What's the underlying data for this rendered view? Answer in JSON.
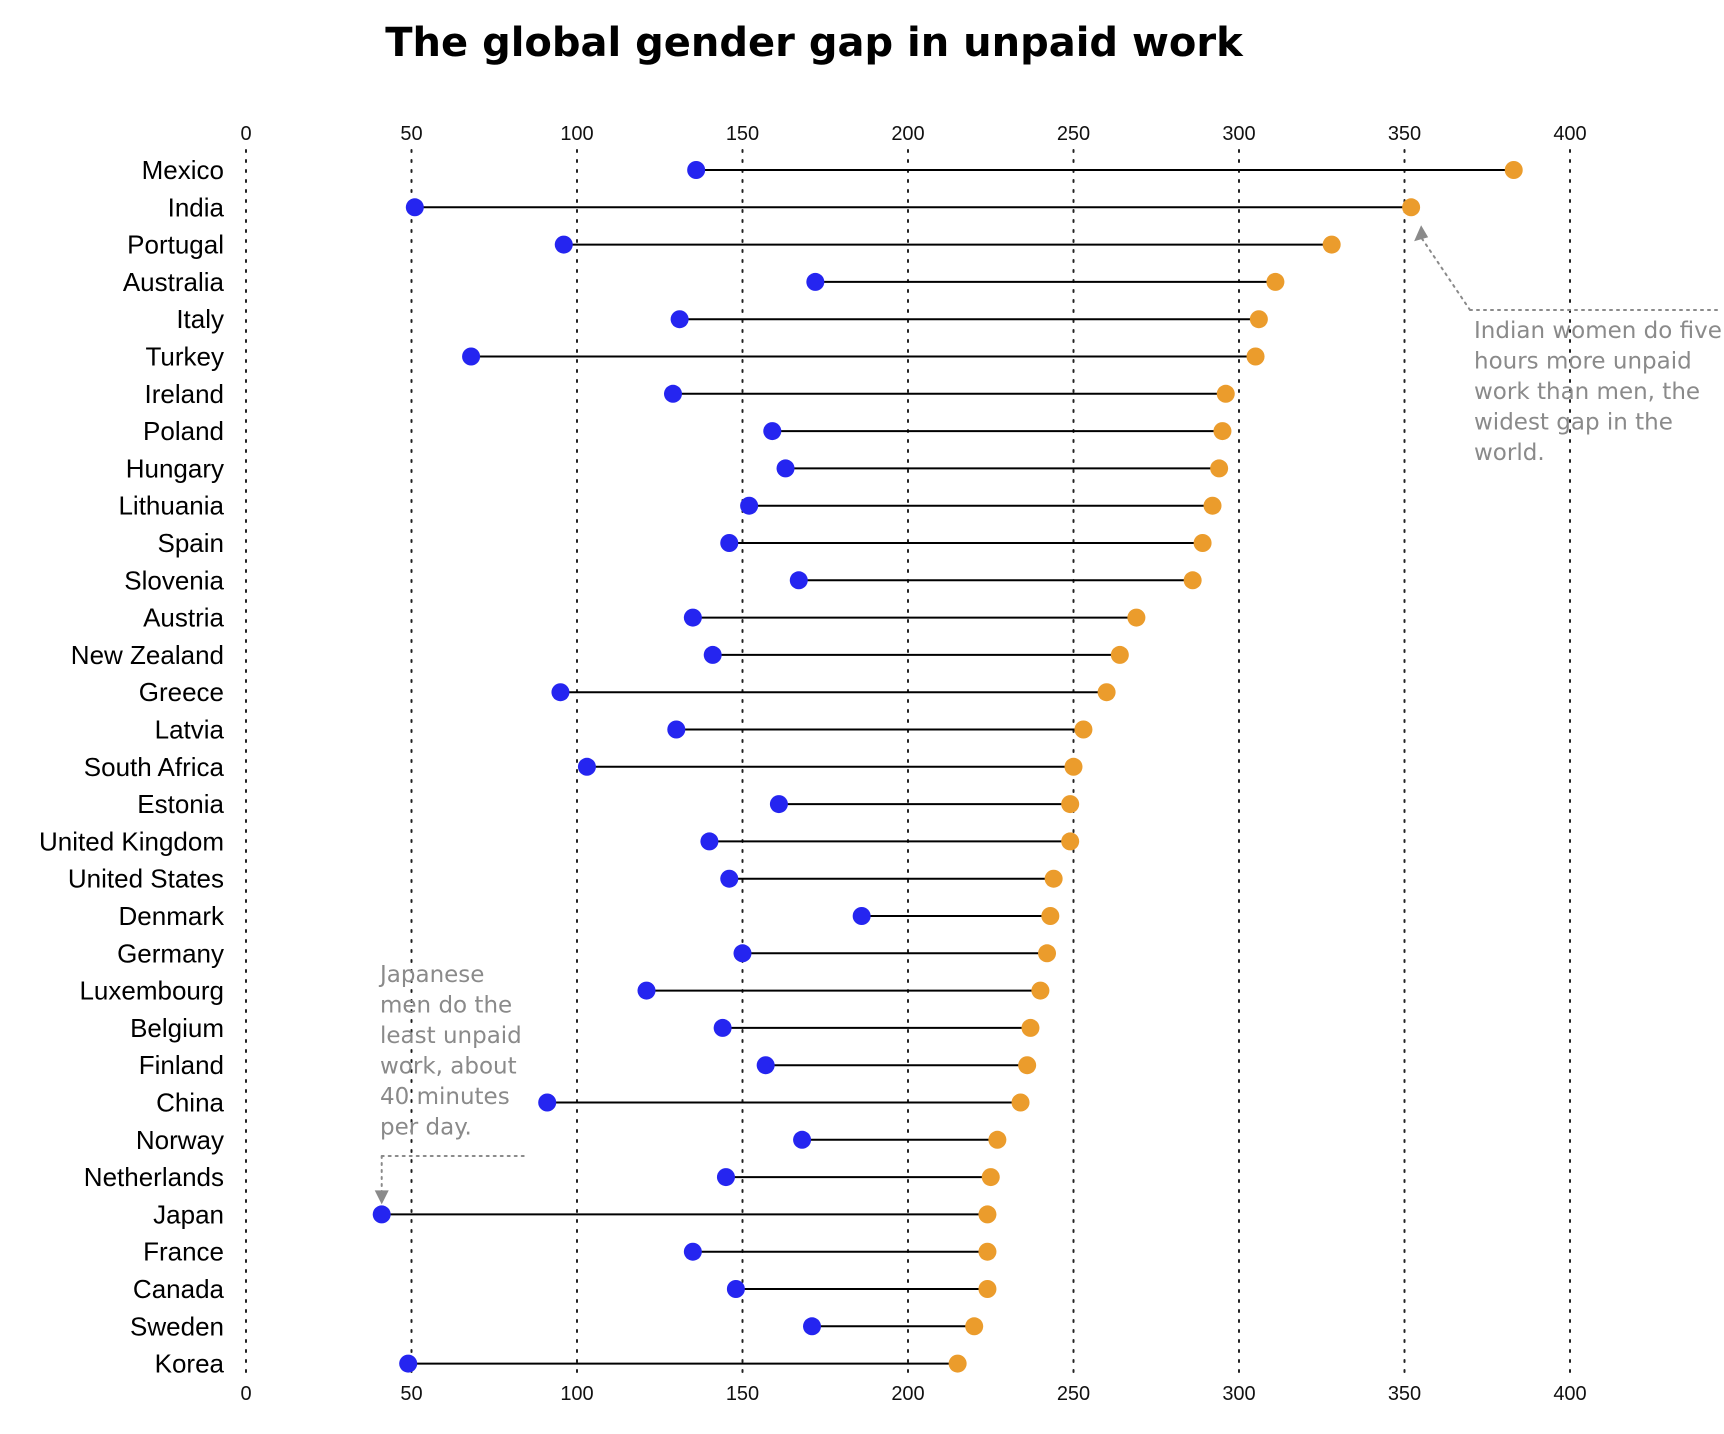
{
  "chart_data": {
    "type": "dumbbell",
    "title": "The global gender gap in unpaid work",
    "xlim": [
      0,
      400
    ],
    "xticks": [
      "0",
      "50",
      "100",
      "150",
      "200",
      "250",
      "300",
      "350",
      "400"
    ],
    "grid": "vertical dotted",
    "colors": {
      "men": "#2525f0",
      "women": "#eb9c2c",
      "connector": "#000000",
      "annotation": "#8a8a8a"
    },
    "countries": [
      {
        "name": "Mexico",
        "men": 136,
        "women": 383
      },
      {
        "name": "India",
        "men": 51,
        "women": 352
      },
      {
        "name": "Portugal",
        "men": 96,
        "women": 328
      },
      {
        "name": "Australia",
        "men": 172,
        "women": 311
      },
      {
        "name": "Italy",
        "men": 131,
        "women": 306
      },
      {
        "name": "Turkey",
        "men": 68,
        "women": 305
      },
      {
        "name": "Ireland",
        "men": 129,
        "women": 296
      },
      {
        "name": "Poland",
        "men": 159,
        "women": 295
      },
      {
        "name": "Hungary",
        "men": 163,
        "women": 294
      },
      {
        "name": "Lithuania",
        "men": 152,
        "women": 292
      },
      {
        "name": "Spain",
        "men": 146,
        "women": 289
      },
      {
        "name": "Slovenia",
        "men": 167,
        "women": 286
      },
      {
        "name": "Austria",
        "men": 135,
        "women": 269
      },
      {
        "name": "New Zealand",
        "men": 141,
        "women": 264
      },
      {
        "name": "Greece",
        "men": 95,
        "women": 260
      },
      {
        "name": "Latvia",
        "men": 130,
        "women": 253
      },
      {
        "name": "South Africa",
        "men": 103,
        "women": 250
      },
      {
        "name": "Estonia",
        "men": 161,
        "women": 249
      },
      {
        "name": "United Kingdom",
        "men": 140,
        "women": 249
      },
      {
        "name": "United States",
        "men": 146,
        "women": 244
      },
      {
        "name": "Denmark",
        "men": 186,
        "women": 243
      },
      {
        "name": "Germany",
        "men": 150,
        "women": 242
      },
      {
        "name": "Luxembourg",
        "men": 121,
        "women": 240
      },
      {
        "name": "Belgium",
        "men": 144,
        "women": 237
      },
      {
        "name": "Finland",
        "men": 157,
        "women": 236
      },
      {
        "name": "China",
        "men": 91,
        "women": 234
      },
      {
        "name": "Norway",
        "men": 168,
        "women": 227
      },
      {
        "name": "Netherlands",
        "men": 145,
        "women": 225
      },
      {
        "name": "Japan",
        "men": 41,
        "women": 224
      },
      {
        "name": "France",
        "men": 135,
        "women": 224
      },
      {
        "name": "Canada",
        "men": 148,
        "women": 224
      },
      {
        "name": "Sweden",
        "men": 171,
        "women": 220
      },
      {
        "name": "Korea",
        "men": 49,
        "women": 215
      }
    ],
    "annotations": [
      {
        "country": "India",
        "series": "women",
        "lines": [
          "Indian women do five",
          "hours more unpaid",
          "work than men, the",
          "widest gap in the",
          "world."
        ]
      },
      {
        "country": "Japan",
        "series": "men",
        "lines": [
          "Japanese",
          "men do the",
          "least unpaid",
          "work, about",
          "40 minutes",
          "per day."
        ]
      }
    ]
  }
}
